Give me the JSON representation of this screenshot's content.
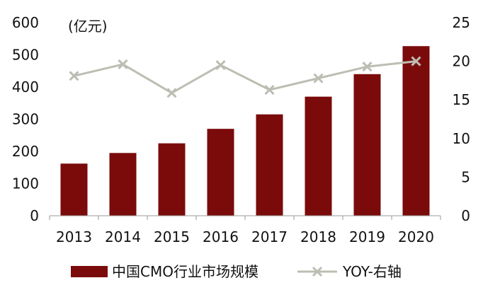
{
  "chart_data": {
    "type": "bar",
    "unit_label": "(亿元)",
    "categories": [
      "2013",
      "2014",
      "2015",
      "2016",
      "2017",
      "2018",
      "2019",
      "2020"
    ],
    "series": [
      {
        "name": "中国CMO行业市场规模",
        "kind": "bar",
        "axis": "left",
        "values": [
          162,
          195,
          225,
          270,
          315,
          370,
          440,
          527
        ]
      },
      {
        "name": "YOY-右轴",
        "kind": "line",
        "axis": "right",
        "marker": "x",
        "values": [
          18.1,
          19.6,
          15.9,
          19.5,
          16.3,
          17.8,
          19.3,
          20.0
        ]
      }
    ],
    "y_left": {
      "ylim": [
        0,
        600
      ],
      "ticks": [
        "0",
        "100",
        "200",
        "300",
        "400",
        "500",
        "600"
      ]
    },
    "y_right": {
      "ylim": [
        0,
        25
      ],
      "ticks": [
        "0",
        "5",
        "10",
        "15",
        "20",
        "25"
      ]
    },
    "grid": false,
    "legend_placement": "bottom-center",
    "colors": {
      "bar": "#7B0B0B",
      "line": "#BDBDB3",
      "axis": "#999999",
      "text": "#111111"
    }
  }
}
